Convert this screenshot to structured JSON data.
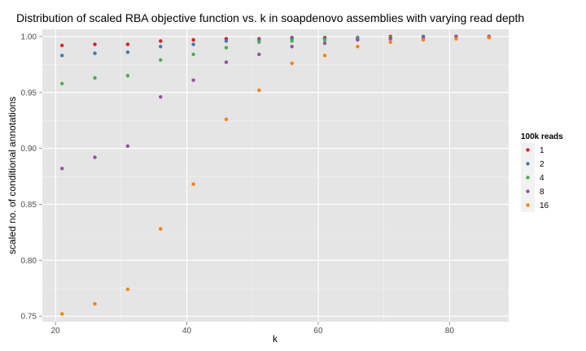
{
  "chart_data": {
    "type": "scatter",
    "title": "Distribution of scaled RBA objective function vs. k in soapdenovo assemblies with varying read depth",
    "xlabel": "k",
    "ylabel": "scaled no. of conditional annotations",
    "xlim": [
      18,
      89
    ],
    "ylim": [
      0.745,
      1.0065
    ],
    "xticks": [
      20,
      40,
      60,
      80
    ],
    "yticks": [
      0.75,
      0.8,
      0.85,
      0.9,
      0.95,
      1.0
    ],
    "ytick_labels": [
      "0.75",
      "0.80",
      "0.85",
      "0.90",
      "0.95",
      "1.00"
    ],
    "grid": true,
    "legend": {
      "title": "100k reads",
      "position": "right"
    },
    "series": [
      {
        "name": "1",
        "color": "#e41a1c",
        "x": [
          21,
          26,
          31,
          36,
          41,
          46,
          51,
          56,
          61,
          66,
          71,
          76,
          81,
          86
        ],
        "y": [
          0.992,
          0.993,
          0.993,
          0.996,
          0.997,
          0.998,
          0.998,
          0.999,
          0.999,
          0.999,
          1.0,
          1.0,
          1.0,
          1.0
        ]
      },
      {
        "name": "2",
        "color": "#377eb8",
        "x": [
          21,
          26,
          31,
          36,
          41,
          46,
          51,
          56,
          61,
          66,
          71,
          76,
          81,
          86
        ],
        "y": [
          0.983,
          0.985,
          0.986,
          0.991,
          0.993,
          0.996,
          0.997,
          0.998,
          0.998,
          0.999,
          0.999,
          1.0,
          1.0,
          1.0
        ]
      },
      {
        "name": "4",
        "color": "#4daf4a",
        "x": [
          21,
          26,
          31,
          36,
          41,
          46,
          51,
          56,
          61,
          66,
          71,
          76,
          81,
          86
        ],
        "y": [
          0.958,
          0.963,
          0.965,
          0.979,
          0.984,
          0.99,
          0.995,
          0.996,
          0.997,
          0.998,
          0.999,
          0.999,
          1.0,
          1.0
        ]
      },
      {
        "name": "8",
        "color": "#984ea3",
        "x": [
          21,
          26,
          31,
          36,
          41,
          46,
          51,
          56,
          61,
          66,
          71,
          76,
          81,
          86
        ],
        "y": [
          0.882,
          0.892,
          0.902,
          0.946,
          0.961,
          0.977,
          0.984,
          0.991,
          0.994,
          0.997,
          0.998,
          0.999,
          1.0,
          1.0
        ]
      },
      {
        "name": "16",
        "color": "#ff7f00",
        "x": [
          21,
          26,
          31,
          36,
          41,
          46,
          51,
          56,
          61,
          66,
          71,
          76,
          81,
          86
        ],
        "y": [
          0.752,
          0.761,
          0.774,
          0.828,
          0.868,
          0.926,
          0.952,
          0.976,
          0.983,
          0.991,
          0.995,
          0.997,
          0.998,
          0.999
        ]
      }
    ]
  }
}
